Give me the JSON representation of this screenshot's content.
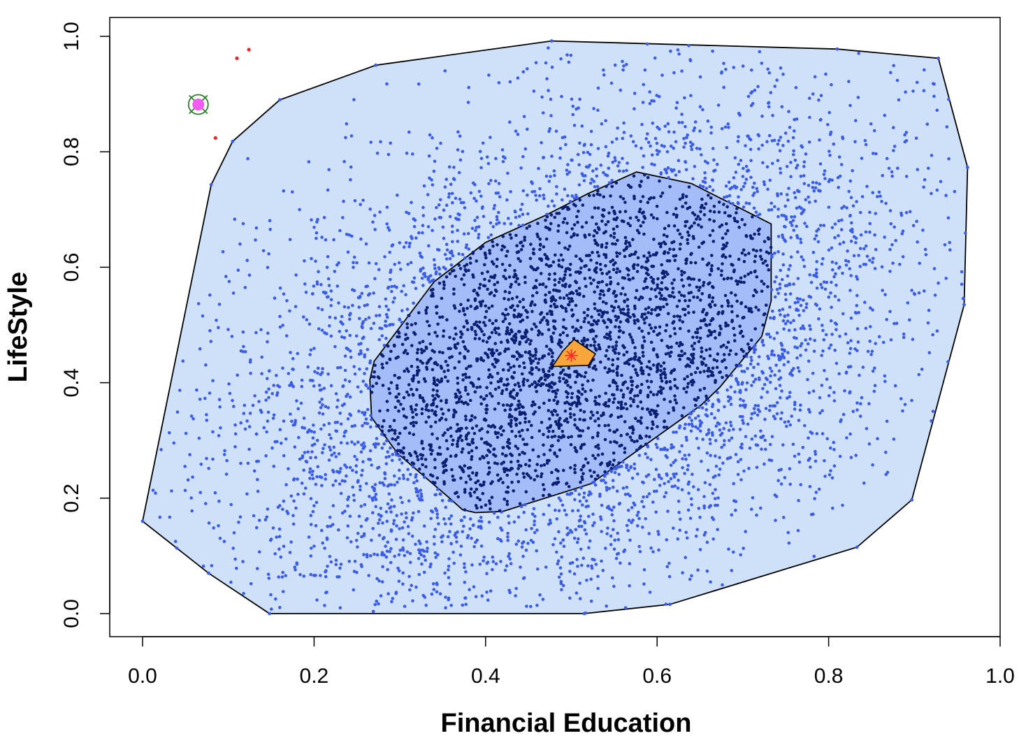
{
  "chart_data": {
    "type": "scatter",
    "title": "",
    "xlabel": "Financial Education",
    "ylabel": "LifeStyle",
    "xlim": [
      -0.04,
      1.0
    ],
    "ylim": [
      -0.04,
      1.03
    ],
    "x_ticks": [
      "0.0",
      "0.2",
      "0.4",
      "0.6",
      "0.8",
      "1.0"
    ],
    "y_ticks": [
      "0.0",
      "0.2",
      "0.4",
      "0.6",
      "0.8",
      "1.0"
    ],
    "grid": false,
    "legend": "none",
    "colors": {
      "outer_hull_fill": "#cfe0f9",
      "inner_hull_fill": "#a3bdf8",
      "outer_points": "#3b5ce8",
      "inner_points": "#0b1f73",
      "median_fill": "#f6a63a",
      "median_star": "#ff2a2a",
      "outliers": "#ff2020",
      "deepest_outlier_fill": "#f35cf3",
      "deepest_outlier_ring": "#2f7d2f"
    },
    "outer_hull": [
      [
        0.0,
        0.16
      ],
      [
        0.077,
        0.07
      ],
      [
        0.148,
        0.0
      ],
      [
        0.515,
        0.0
      ],
      [
        0.615,
        0.016
      ],
      [
        0.833,
        0.115
      ],
      [
        0.897,
        0.197
      ],
      [
        0.958,
        0.535
      ],
      [
        0.962,
        0.773
      ],
      [
        0.928,
        0.962
      ],
      [
        0.81,
        0.978
      ],
      [
        0.477,
        0.992
      ],
      [
        0.272,
        0.95
      ],
      [
        0.16,
        0.89
      ],
      [
        0.105,
        0.818
      ],
      [
        0.08,
        0.743
      ]
    ],
    "inner_hull": [
      [
        0.388,
        0.175
      ],
      [
        0.42,
        0.177
      ],
      [
        0.523,
        0.225
      ],
      [
        0.652,
        0.362
      ],
      [
        0.673,
        0.392
      ],
      [
        0.722,
        0.48
      ],
      [
        0.733,
        0.542
      ],
      [
        0.733,
        0.675
      ],
      [
        0.64,
        0.745
      ],
      [
        0.576,
        0.765
      ],
      [
        0.52,
        0.728
      ],
      [
        0.47,
        0.69
      ],
      [
        0.4,
        0.643
      ],
      [
        0.34,
        0.575
      ],
      [
        0.27,
        0.437
      ],
      [
        0.265,
        0.405
      ],
      [
        0.267,
        0.34
      ],
      [
        0.297,
        0.278
      ],
      [
        0.358,
        0.2
      ],
      [
        0.373,
        0.18
      ]
    ],
    "median_region": [
      [
        0.478,
        0.428
      ],
      [
        0.52,
        0.43
      ],
      [
        0.528,
        0.45
      ],
      [
        0.503,
        0.475
      ],
      [
        0.49,
        0.455
      ]
    ],
    "median_center": [
      0.5,
      0.447
    ],
    "outliers": [
      [
        0.11,
        0.962
      ],
      [
        0.124,
        0.977
      ],
      [
        0.085,
        0.824
      ]
    ],
    "deepest_outlier": [
      0.065,
      0.882
    ],
    "center": [
      0.5,
      0.447
    ],
    "correlation": 0.4,
    "inner_point_count": 2600,
    "outer_point_count": 2900
  }
}
